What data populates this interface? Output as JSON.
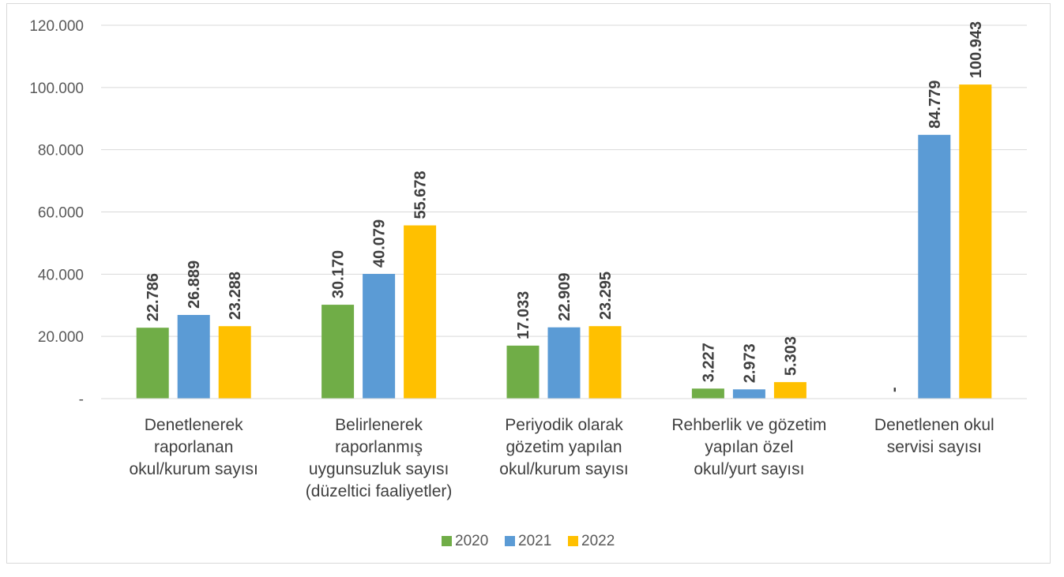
{
  "chart_data": {
    "type": "bar",
    "categories": [
      [
        "Denetlenerek",
        "raporlanan",
        "okul/kurum sayısı"
      ],
      [
        "Belirlenerek",
        "raporlanmış",
        "uygunsuzluk sayısı",
        "(düzeltici faaliyetler)"
      ],
      [
        "Periyodik olarak",
        "gözetim yapılan",
        "okul/kurum sayısı"
      ],
      [
        "Rehberlik ve gözetim",
        "yapılan özel",
        "okul/yurt sayısı"
      ],
      [
        "Denetlenen okul",
        "servisi sayısı"
      ]
    ],
    "series": [
      {
        "name": "2020",
        "color": "#70ad47",
        "values": [
          22786,
          30170,
          17033,
          3227,
          0
        ],
        "labels": [
          "22.786",
          "30.170",
          "17.033",
          "3.227",
          "-"
        ]
      },
      {
        "name": "2021",
        "color": "#5b9bd5",
        "values": [
          26889,
          40079,
          22909,
          2973,
          84779
        ],
        "labels": [
          "26.889",
          "40.079",
          "22.909",
          "2.973",
          "84.779"
        ]
      },
      {
        "name": "2022",
        "color": "#ffc000",
        "values": [
          23288,
          55678,
          23295,
          5303,
          100943
        ],
        "labels": [
          "23.288",
          "55.678",
          "23.295",
          "5.303",
          "100.943"
        ]
      }
    ],
    "ylim": [
      0,
      120000
    ],
    "yticks": [
      0,
      20000,
      40000,
      60000,
      80000,
      100000,
      120000
    ],
    "ytick_labels": [
      "-",
      "20.000",
      "40.000",
      "60.000",
      "80.000",
      "100.000",
      "120.000"
    ],
    "grid": true,
    "legend": "bottom",
    "title": "",
    "xlabel": "",
    "ylabel": ""
  }
}
